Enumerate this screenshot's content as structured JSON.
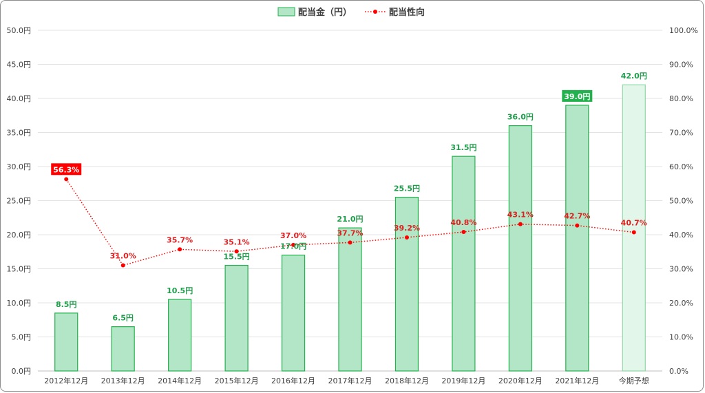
{
  "chart_data": {
    "type": "bar",
    "categories": [
      "2012年12月",
      "2013年12月",
      "2014年12月",
      "2015年12月",
      "2016年12月",
      "2017年12月",
      "2018年12月",
      "2019年12月",
      "2020年12月",
      "2021年12月",
      "今期予想"
    ],
    "series": [
      {
        "name": "配当金（円）",
        "type": "bar",
        "axis": "left",
        "values": [
          8.5,
          6.5,
          10.5,
          15.5,
          17.0,
          21.0,
          25.5,
          31.5,
          36.0,
          39.0,
          42.0
        ],
        "labels": [
          "8.5円",
          "6.5円",
          "10.5円",
          "15.5円",
          "17.0円",
          "21.0円",
          "25.5円",
          "31.5円",
          "36.0円",
          "39.0円",
          "42.0円"
        ],
        "color": "#b3e6c6",
        "border_color": "#22b14c",
        "forecast_color": "#e3f6ea",
        "highlight_index": 9,
        "highlight_color": "#22b14c"
      },
      {
        "name": "配当性向",
        "type": "line",
        "axis": "right",
        "values": [
          56.3,
          31.0,
          35.7,
          35.1,
          37.0,
          37.7,
          39.2,
          40.8,
          43.1,
          42.7,
          40.7
        ],
        "labels": [
          "56.3%",
          "31.0%",
          "35.7%",
          "35.1%",
          "37.0%",
          "37.7%",
          "39.2%",
          "40.8%",
          "43.1%",
          "42.7%",
          "40.7%"
        ],
        "color": "#ff0000",
        "line_style": "dotted",
        "highlight_index": 0,
        "highlight_color": "#ff0000"
      }
    ],
    "left_axis": {
      "min": 0,
      "max": 50,
      "step": 5,
      "tick_labels": [
        "0.0円",
        "5.0円",
        "10.0円",
        "15.0円",
        "20.0円",
        "25.0円",
        "30.0円",
        "35.0円",
        "40.0円",
        "45.0円",
        "50.0円"
      ]
    },
    "right_axis": {
      "min": 0,
      "max": 100,
      "step": 10,
      "tick_labels": [
        "0.0%",
        "10.0%",
        "20.0%",
        "30.0%",
        "40.0%",
        "50.0%",
        "60.0%",
        "70.0%",
        "80.0%",
        "90.0%",
        "100.0%"
      ]
    },
    "grid": true,
    "legend_position": "top-center",
    "title": "",
    "xlabel": "",
    "ylabel": ""
  }
}
